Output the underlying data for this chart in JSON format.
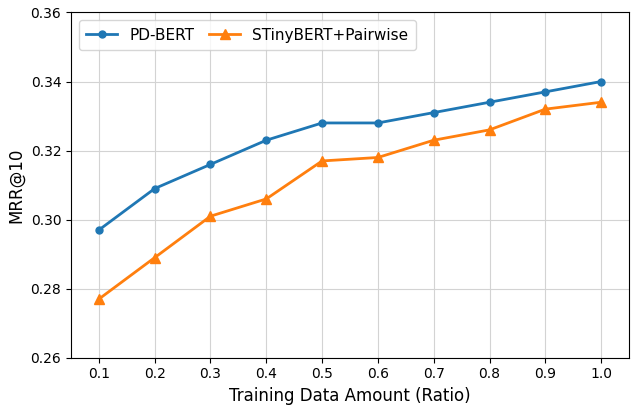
{
  "x": [
    0.1,
    0.2,
    0.3,
    0.4,
    0.5,
    0.6,
    0.7,
    0.8,
    0.9,
    1.0
  ],
  "pd_bert": [
    0.297,
    0.309,
    0.316,
    0.323,
    0.328,
    0.328,
    0.331,
    0.334,
    0.337,
    0.34
  ],
  "stiny_pairwise": [
    0.277,
    0.289,
    0.301,
    0.306,
    0.317,
    0.318,
    0.323,
    0.326,
    0.332,
    0.334
  ],
  "pd_bert_label": "PD-BERT",
  "stiny_label": "STinyBERT+Pairwise",
  "pd_bert_color": "#1f77b4",
  "stiny_color": "#ff7f0e",
  "xlabel": "Training Data Amount (Ratio)",
  "ylabel": "MRR@10",
  "xlim": [
    0.05,
    1.05
  ],
  "ylim": [
    0.26,
    0.36
  ],
  "yticks": [
    0.26,
    0.28,
    0.3,
    0.32,
    0.34,
    0.36
  ],
  "xticks": [
    0.1,
    0.2,
    0.3,
    0.4,
    0.5,
    0.6,
    0.7,
    0.8,
    0.9,
    1.0
  ],
  "figsize": [
    6.36,
    4.12
  ],
  "dpi": 100
}
